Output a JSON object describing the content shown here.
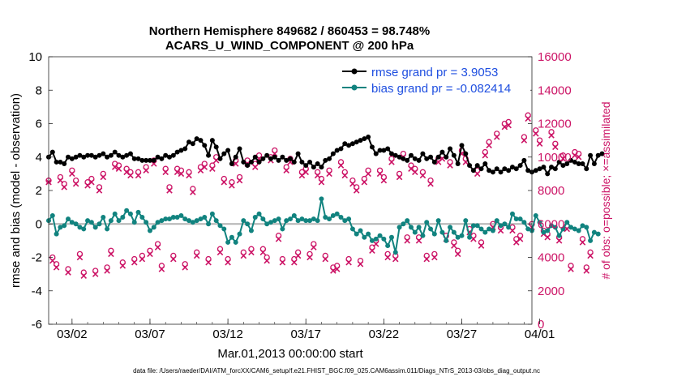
{
  "chart_data": {
    "type": "line",
    "title_line1": "Northern Hemisphere 849682 / 860453 = 98.748%",
    "title_line2": "ACARS_U_WIND_COMPONENT @ 200 hPa",
    "xlabel": "Mar.01,2013 00:00:00 start",
    "ylabel": "rmse and bias (model - observation)",
    "ylabel_right": "# of obs: o=possible; ×=assimilated",
    "footnote": "data file: /Users/raeder/DAI/ATM_forcXX/CAM6_setup/f.e21.FHIST_BGC.f09_025.CAM6assim.011/Diags_NTrS_2013-03/obs_diag_output.nc",
    "x_range_days": [
      0.5,
      31.5
    ],
    "ylim": [
      -6,
      10
    ],
    "yticks": [
      "-6",
      "-4",
      "-2",
      "0",
      "2",
      "4",
      "6",
      "8",
      "10"
    ],
    "ylim_right": [
      0,
      16000
    ],
    "yticks_right": [
      "0",
      "2000",
      "4000",
      "6000",
      "8000",
      "10000",
      "12000",
      "14000",
      "16000"
    ],
    "xtick_days": [
      2,
      7,
      12,
      17,
      22,
      27,
      32
    ],
    "xtick_labels": [
      "03/02",
      "03/07",
      "03/12",
      "03/17",
      "03/22",
      "03/27",
      "04/01"
    ],
    "colors": {
      "rmse": "#000000",
      "bias": "#11837f",
      "counts": "#cc1466",
      "zero_line": "#b3b3b3"
    },
    "legend": {
      "position": "top-right",
      "rmse_label": "rmse grand pr = 3.9053",
      "bias_label": "bias grand pr = -0.082414"
    },
    "series": [
      {
        "name": "rmse",
        "label": "rmse grand pr = 3.9053",
        "t0_day": 0.5,
        "step_days": 0.25,
        "values": [
          4.0,
          4.3,
          3.7,
          3.7,
          3.6,
          4.0,
          3.9,
          4.0,
          4.1,
          4.0,
          4.1,
          4.1,
          4.0,
          4.1,
          4.2,
          4.0,
          4.1,
          4.3,
          4.1,
          4.0,
          4.1,
          4.2,
          3.9,
          3.9,
          3.8,
          3.8,
          3.8,
          3.8,
          4.0,
          3.9,
          4.1,
          4.0,
          4.1,
          4.3,
          4.4,
          4.5,
          4.9,
          4.8,
          5.1,
          5.0,
          4.7,
          4.1,
          5.0,
          4.6,
          3.9,
          4.2,
          4.4,
          3.6,
          4.0,
          4.5,
          3.7,
          3.5,
          3.7,
          4.0,
          3.7,
          3.9,
          4.1,
          3.9,
          4.0,
          3.8,
          4.0,
          3.8,
          3.9,
          3.7,
          4.2,
          3.7,
          3.5,
          3.7,
          3.4,
          3.6,
          3.4,
          3.8,
          3.9,
          4.2,
          4.4,
          4.5,
          4.8,
          4.7,
          4.8,
          4.9,
          5.0,
          5.1,
          5.2,
          4.6,
          4.2,
          4.4,
          4.4,
          4.5,
          4.2,
          4.1,
          4.0,
          3.9,
          3.8,
          4.1,
          3.9,
          3.8,
          4.2,
          3.9,
          4.0,
          3.7,
          4.0,
          4.3,
          4.0,
          4.5,
          4.1,
          3.6,
          4.7,
          4.2,
          3.5,
          3.2,
          3.5,
          3.3,
          3.6,
          3.2,
          3.1,
          3.3,
          3.1,
          3.3,
          3.2,
          3.4,
          3.3,
          3.5,
          3.8,
          3.2,
          3.1,
          3.2,
          3.3,
          3.4,
          3.0,
          3.4,
          3.3,
          3.7,
          3.5,
          3.6,
          3.8,
          3.7,
          3.6,
          3.6,
          3.3,
          4.1,
          3.6,
          4.1,
          4.2
        ]
      },
      {
        "name": "bias",
        "label": "bias grand pr = -0.082414",
        "t0_day": 0.5,
        "step_days": 0.25,
        "values": [
          0.2,
          0.5,
          -0.6,
          -0.2,
          -0.1,
          0.3,
          0.1,
          0.0,
          -0.2,
          -0.3,
          0.2,
          0.1,
          -0.2,
          0.0,
          0.4,
          -0.3,
          0.2,
          0.6,
          0.2,
          0.4,
          0.8,
          0.6,
          0.1,
          0.7,
          0.4,
          0.1,
          -0.4,
          -0.2,
          0.1,
          0.2,
          0.3,
          0.3,
          0.4,
          0.4,
          0.5,
          0.3,
          0.2,
          0.1,
          0.2,
          0.3,
          0.4,
          0.0,
          0.6,
          0.2,
          -0.1,
          -0.3,
          -1.1,
          -0.8,
          -1.1,
          -0.6,
          0.2,
          0.0,
          -0.4,
          0.4,
          0.6,
          0.3,
          0.0,
          0.1,
          0.2,
          0.3,
          -0.3,
          0.2,
          0.3,
          0.5,
          0.2,
          0.3,
          0.2,
          0.2,
          0.3,
          0.2,
          1.5,
          0.4,
          0.3,
          0.5,
          0.6,
          0.4,
          0.2,
          0.3,
          -0.3,
          -0.6,
          -0.4,
          -0.8,
          -0.6,
          -1.0,
          -0.9,
          -0.7,
          -0.9,
          -1.3,
          -0.8,
          -1.7,
          -0.2,
          0.0,
          0.2,
          -0.2,
          -0.5,
          -0.2,
          -0.7,
          0.1,
          -0.3,
          -0.6,
          0.2,
          -0.5,
          -1.0,
          -0.2,
          -0.5,
          -0.8,
          -0.7,
          0.2,
          -0.8,
          -0.1,
          -0.1,
          -0.3,
          -0.5,
          -0.3,
          -0.4,
          0.2,
          -0.1,
          0.0,
          -0.2,
          0.6,
          0.3,
          0.3,
          0.1,
          -0.3,
          -0.4,
          0.5,
          0.1,
          -0.5,
          -0.4,
          -0.1,
          -0.2,
          -0.7,
          -0.3,
          0.1,
          -0.2,
          -0.3,
          -0.4,
          -0.1,
          -0.2,
          -1.0,
          -0.5,
          -0.6
        ]
      },
      {
        "name": "obs_possible",
        "t0_day": 0.5,
        "step_days": 0.25,
        "values": [
          8600,
          4000,
          3600,
          8800,
          8400,
          3300,
          9200,
          8600,
          4200,
          3100,
          8500,
          8700,
          3200,
          8200,
          9000,
          3400,
          4400,
          9600,
          9500,
          3700,
          9300,
          9100,
          3900,
          9100,
          4100,
          9400,
          4400,
          9800,
          4800,
          3500,
          9300,
          8200,
          4100,
          9300,
          9200,
          3600,
          9100,
          8100,
          4300,
          9400,
          9600,
          3900,
          9500,
          10000,
          4500,
          8700,
          3900,
          8500,
          9800,
          8800,
          4300,
          9800,
          4500,
          9600,
          10100,
          4500,
          4000,
          10000,
          10400,
          5300,
          3900,
          9400,
          9900,
          3900,
          4300,
          9100,
          9300,
          4200,
          4800,
          9100,
          8700,
          4100,
          9200,
          3400,
          3500,
          9700,
          9100,
          3900,
          8600,
          8200,
          3800,
          8700,
          9200,
          4600,
          5000,
          9200,
          8800,
          4200,
          9900,
          4100,
          9000,
          10200,
          5200,
          9500,
          9300,
          5200,
          9100,
          4100,
          8600,
          4200,
          9900,
          10100,
          5300,
          9700,
          4900,
          4400,
          10400,
          9900,
          5700,
          5300,
          9200,
          4900,
          10300,
          10900,
          6000,
          11400,
          5800,
          12000,
          12100,
          5800,
          5100,
          5300,
          11200,
          12500,
          6000,
          11600,
          11000,
          5600,
          5400,
          11500,
          10800,
          5200,
          10100,
          5900,
          3500,
          10300,
          10200,
          5100,
          3400,
          4300
        ]
      },
      {
        "name": "obs_assimilated",
        "t0_day": 0.5,
        "step_days": 0.25,
        "values": [
          8500,
          3800,
          3400,
          8600,
          8200,
          3100,
          9000,
          8400,
          4000,
          2900,
          8300,
          8500,
          3000,
          8000,
          8800,
          3200,
          4200,
          9400,
          9300,
          3500,
          9100,
          8900,
          3700,
          8900,
          3900,
          9200,
          4200,
          9600,
          4600,
          3300,
          9100,
          8000,
          3900,
          9100,
          9000,
          3400,
          8900,
          7900,
          4100,
          9200,
          9400,
          3700,
          9300,
          9800,
          4300,
          8500,
          3700,
          8300,
          9600,
          8600,
          4100,
          9600,
          4300,
          9400,
          9900,
          4300,
          3800,
          9800,
          10200,
          5100,
          3700,
          9200,
          9700,
          3700,
          4100,
          8900,
          9100,
          4000,
          4600,
          8900,
          8500,
          3900,
          9000,
          3200,
          3300,
          9500,
          8900,
          3700,
          8400,
          8000,
          3600,
          8500,
          9000,
          4400,
          4800,
          9000,
          8600,
          4000,
          9700,
          3900,
          8800,
          10000,
          5000,
          9300,
          9100,
          5000,
          8900,
          3900,
          8400,
          4000,
          9700,
          9900,
          5100,
          9500,
          4700,
          4200,
          10200,
          9700,
          5500,
          5100,
          9000,
          4700,
          10100,
          10700,
          5800,
          11200,
          5600,
          11800,
          11900,
          5600,
          4900,
          5100,
          11000,
          12300,
          5800,
          11400,
          10800,
          5400,
          5200,
          11300,
          10600,
          5000,
          9900,
          5700,
          3300,
          10100,
          10000,
          4900,
          3200,
          4100
        ]
      }
    ]
  }
}
